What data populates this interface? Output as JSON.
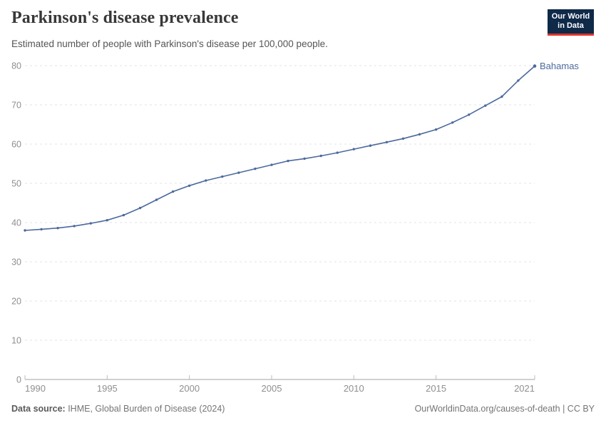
{
  "header": {
    "title": "Parkinson's disease prevalence",
    "subtitle": "Estimated number of people with Parkinson's disease per 100,000 people."
  },
  "logo": {
    "line1": "Our World",
    "line2": "in Data",
    "bg_color": "#0f2949",
    "accent_color": "#dc352b"
  },
  "chart_data": {
    "type": "line",
    "title": "Parkinson's disease prevalence",
    "subtitle": "Estimated number of people with Parkinson's disease per 100,000 people.",
    "xlabel": "",
    "ylabel": "",
    "xlim": [
      1990,
      2021
    ],
    "ylim": [
      0,
      80
    ],
    "x_ticks": [
      1990,
      1995,
      2000,
      2005,
      2010,
      2015,
      2021
    ],
    "y_ticks": [
      0,
      10,
      20,
      30,
      40,
      50,
      60,
      70,
      80
    ],
    "grid": "horizontal dashed",
    "legend_position": "end-of-line label",
    "series": [
      {
        "name": "Bahamas",
        "color": "#4C6A9D",
        "x": [
          1990,
          1991,
          1992,
          1993,
          1994,
          1995,
          1996,
          1997,
          1998,
          1999,
          2000,
          2001,
          2002,
          2003,
          2004,
          2005,
          2006,
          2007,
          2008,
          2009,
          2010,
          2011,
          2012,
          2013,
          2014,
          2015,
          2016,
          2017,
          2018,
          2019,
          2020,
          2021
        ],
        "values": [
          38.0,
          38.3,
          38.6,
          39.1,
          39.8,
          40.6,
          41.9,
          43.7,
          45.8,
          47.9,
          49.4,
          50.7,
          51.7,
          52.7,
          53.7,
          54.7,
          55.7,
          56.3,
          57.0,
          57.8,
          58.7,
          59.6,
          60.5,
          61.4,
          62.5,
          63.7,
          65.5,
          67.5,
          69.8,
          72.1,
          76.2,
          79.9
        ]
      }
    ]
  },
  "colors": {
    "series": "#4C6A9D",
    "grid": "#e3e3e3",
    "axis": "#a1a1a1",
    "tick": "#bcbcbc",
    "axis_label": "#8f8f8f"
  },
  "footer": {
    "source_label": "Data source:",
    "source_text": " IHME, Global Burden of Disease (2024)",
    "right_text": "OurWorldinData.org/causes-of-death | CC BY"
  }
}
